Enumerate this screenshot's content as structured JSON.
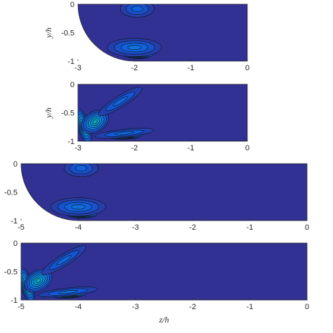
{
  "chart_data": [
    {
      "type": "contour",
      "ylabel": "y/h",
      "xlabel": "",
      "xlim": [
        -3,
        0
      ],
      "ylim": [
        -1,
        0
      ],
      "xticks": [
        "-3",
        "-2",
        "-1",
        "0"
      ],
      "yticks": [
        "0",
        "-0.5",
        "-1"
      ],
      "wall_radius": 1,
      "pattern": "A",
      "colormap": "parula"
    },
    {
      "type": "contour",
      "ylabel": "y/h",
      "xlabel": "",
      "xlim": [
        -3,
        0
      ],
      "ylim": [
        -1,
        0
      ],
      "xticks": [
        "-3",
        "-2",
        "-1",
        "0"
      ],
      "yticks": [
        "0",
        "-0.5",
        "-1"
      ],
      "wall_radius": 0,
      "pattern": "B",
      "colormap": "parula"
    },
    {
      "type": "contour",
      "ylabel": "",
      "xlabel": "",
      "xlim": [
        -5,
        0
      ],
      "ylim": [
        -1,
        0
      ],
      "xticks": [
        "-5",
        "-4",
        "-3",
        "-2",
        "-1",
        "0"
      ],
      "yticks": [
        "0",
        "-0.5",
        "-1"
      ],
      "wall_radius": 1,
      "pattern": "A",
      "colormap": "parula"
    },
    {
      "type": "contour",
      "ylabel": "",
      "xlabel": "z/h",
      "xlim": [
        -5,
        0
      ],
      "ylim": [
        -1,
        0
      ],
      "xticks": [
        "-5",
        "-4",
        "-3",
        "-2",
        "-1",
        "0"
      ],
      "yticks": [
        "0",
        "-0.5",
        "-1"
      ],
      "wall_radius": 0,
      "pattern": "B",
      "colormap": "parula"
    }
  ]
}
